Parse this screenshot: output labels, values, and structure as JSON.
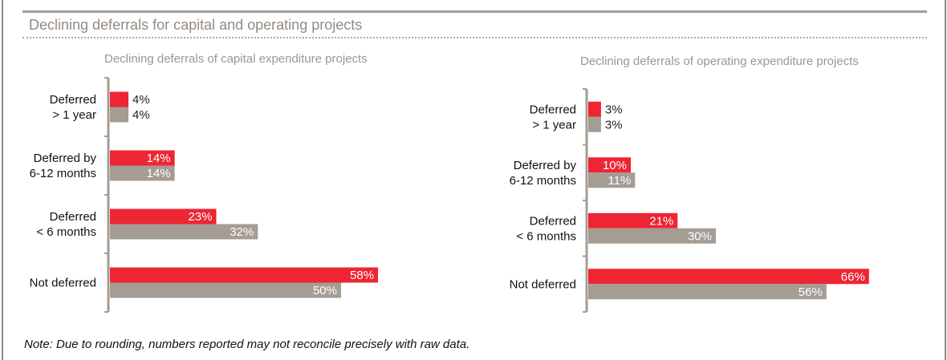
{
  "header": {
    "title": "Declining deferrals for capital and operating projects"
  },
  "note": "Note: Due to rounding, numbers reported may not reconcile precisely with raw data.",
  "colors": {
    "series_red": "#ee2533",
    "series_gray": "#a59c94",
    "axis": "#a59c94"
  },
  "chart_data": [
    {
      "type": "bar",
      "orientation": "horizontal",
      "title": "Declining deferrals of capital  expenditure projects",
      "categories": [
        [
          "Deferred",
          "> 1 year"
        ],
        [
          "Deferred by",
          "6-12 months"
        ],
        [
          "Deferred",
          "< 6 months"
        ],
        [
          "Not deferred"
        ]
      ],
      "series": [
        {
          "name": "red",
          "color": "#ee2533",
          "values": [
            4,
            14,
            23,
            58
          ],
          "labels": [
            "4%",
            "14%",
            "23%",
            "58%"
          ]
        },
        {
          "name": "gray",
          "color": "#a59c94",
          "values": [
            4,
            14,
            32,
            50
          ],
          "labels": [
            "4%",
            "14%",
            "32%",
            "50%"
          ]
        }
      ],
      "xlabel": "",
      "ylabel": "",
      "xlim": [
        0,
        60
      ],
      "grid": false,
      "legend": "none"
    },
    {
      "type": "bar",
      "orientation": "horizontal",
      "title": "Declining deferrals of operating  expenditure projects",
      "categories": [
        [
          "Deferred",
          "> 1 year"
        ],
        [
          "Deferred by",
          "6-12 months"
        ],
        [
          "Deferred",
          "< 6 months"
        ],
        [
          "Not deferred"
        ]
      ],
      "series": [
        {
          "name": "red",
          "color": "#ee2533",
          "values": [
            3,
            10,
            21,
            66
          ],
          "labels": [
            "3%",
            "10%",
            "21%",
            "66%"
          ]
        },
        {
          "name": "gray",
          "color": "#a59c94",
          "values": [
            3,
            11,
            30,
            56
          ],
          "labels": [
            "3%",
            "11%",
            "30%",
            "56%"
          ]
        }
      ],
      "xlabel": "",
      "ylabel": "",
      "xlim": [
        0,
        68
      ],
      "grid": false,
      "legend": "none"
    }
  ]
}
